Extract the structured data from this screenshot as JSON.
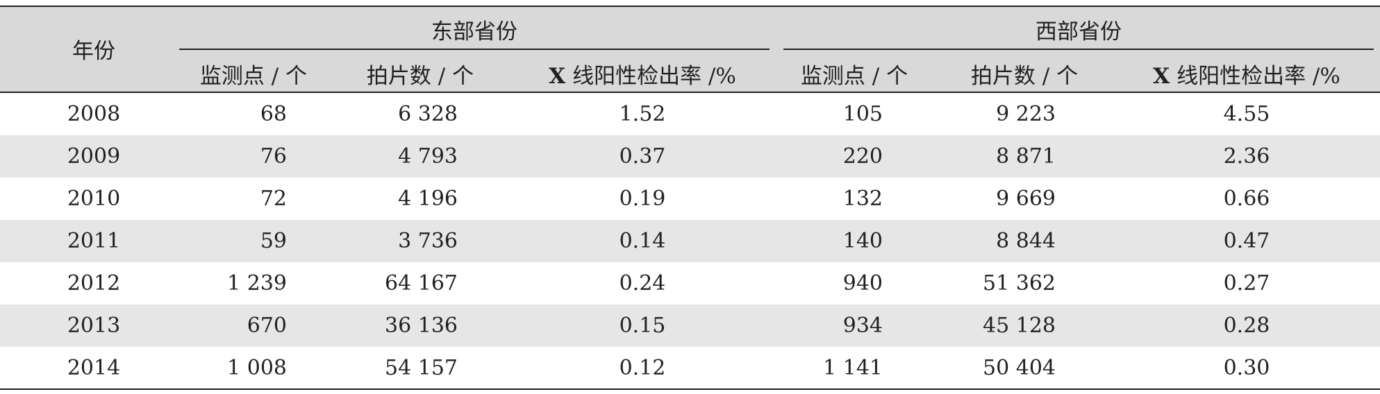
{
  "header": {
    "year_label": "年份",
    "group_east": "东部省份",
    "group_west": "西部省份",
    "sub_sites": "监测点 / 个",
    "sub_films": "拍片数 / 个",
    "sub_rate_prefix": "X",
    "sub_rate_suffix": " 线阳性检出率 /%"
  },
  "rows": [
    {
      "year": "2008",
      "e_sites": "68",
      "e_films": "6 328",
      "e_rate": "1.52",
      "w_sites": "105",
      "w_films": "9 223",
      "w_rate": "4.55"
    },
    {
      "year": "2009",
      "e_sites": "76",
      "e_films": "4 793",
      "e_rate": "0.37",
      "w_sites": "220",
      "w_films": "8 871",
      "w_rate": "2.36"
    },
    {
      "year": "2010",
      "e_sites": "72",
      "e_films": "4 196",
      "e_rate": "0.19",
      "w_sites": "132",
      "w_films": "9 669",
      "w_rate": "0.66"
    },
    {
      "year": "2011",
      "e_sites": "59",
      "e_films": "3 736",
      "e_rate": "0.14",
      "w_sites": "140",
      "w_films": "8 844",
      "w_rate": "0.47"
    },
    {
      "year": "2012",
      "e_sites": "1 239",
      "e_films": "64 167",
      "e_rate": "0.24",
      "w_sites": "940",
      "w_films": "51 362",
      "w_rate": "0.27"
    },
    {
      "year": "2013",
      "e_sites": "670",
      "e_films": "36 136",
      "e_rate": "0.15",
      "w_sites": "934",
      "w_films": "45 128",
      "w_rate": "0.28"
    },
    {
      "year": "2014",
      "e_sites": "1 008",
      "e_films": "54 157",
      "e_rate": "0.12",
      "w_sites": "1 141",
      "w_films": "50 404",
      "w_rate": "0.30"
    }
  ]
}
